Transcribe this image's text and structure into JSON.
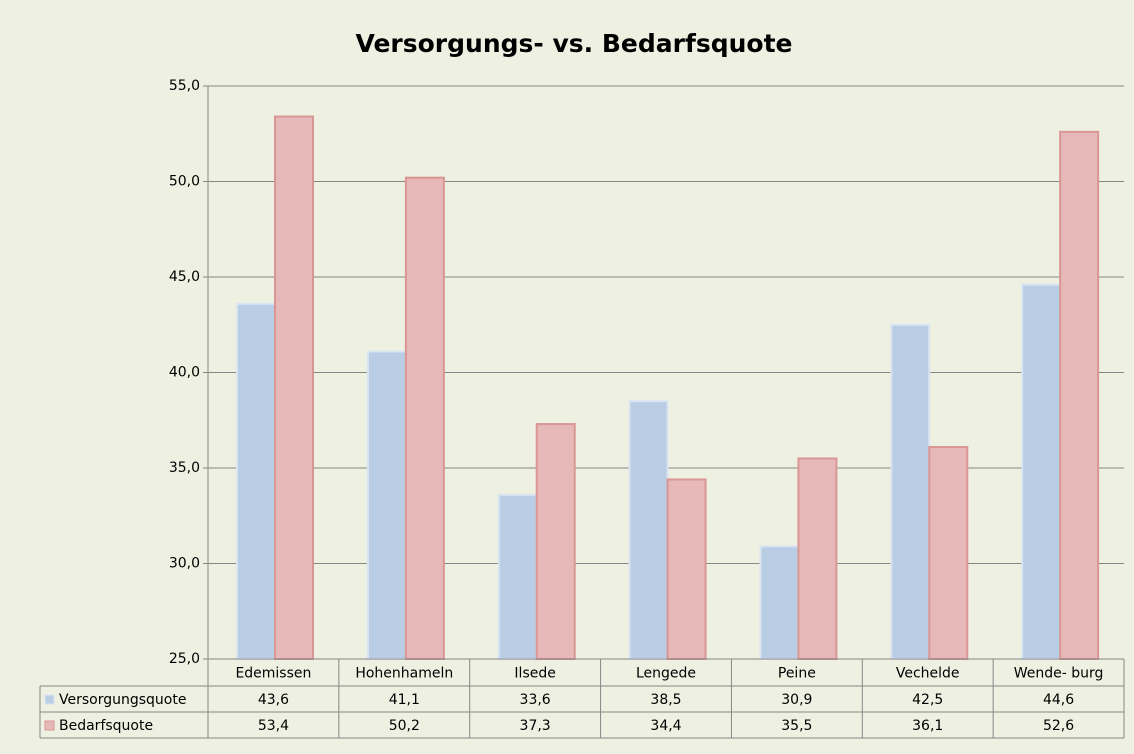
{
  "chart_data": {
    "type": "bar",
    "title": "Versorgungs- vs. Bedarfsquote",
    "categories": [
      "Edemissen",
      "Hohenhameln",
      "Ilsede",
      "Lengede",
      "Peine",
      "Vechelde",
      "Wende- burg"
    ],
    "series": [
      {
        "name": "Versorgungsquote",
        "color": "#b9cde5",
        "values": [
          43.6,
          41.1,
          33.6,
          38.5,
          30.9,
          42.5,
          44.6
        ],
        "value_labels": [
          "43,6",
          "41,1",
          "33,6",
          "38,5",
          "30,9",
          "42,5",
          "44,6"
        ]
      },
      {
        "name": "Bedarfsquote",
        "color": "#e6b9b8",
        "values": [
          53.4,
          50.2,
          37.3,
          34.4,
          35.5,
          36.1,
          52.6
        ],
        "value_labels": [
          "53,4",
          "50,2",
          "37,3",
          "34,4",
          "35,5",
          "36,1",
          "52,6"
        ]
      }
    ],
    "ylim": [
      25,
      55
    ],
    "yticks": [
      {
        "value": 25,
        "label": "25,0"
      },
      {
        "value": 30,
        "label": "30,0"
      },
      {
        "value": 35,
        "label": "35,0"
      },
      {
        "value": 40,
        "label": "40,0"
      },
      {
        "value": 45,
        "label": "45,0"
      },
      {
        "value": 50,
        "label": "50,0"
      },
      {
        "value": 55,
        "label": "55,0"
      }
    ],
    "grid": true
  }
}
